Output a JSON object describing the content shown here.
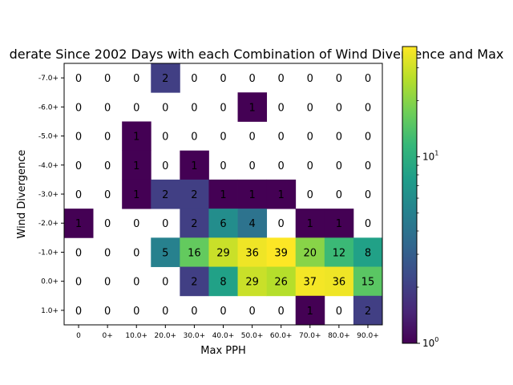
{
  "chart_data": {
    "type": "heatmap",
    "title": "derate Since 2002 Days with each Combination of Wind Divergence and Max",
    "xlabel": "Max PPH",
    "ylabel": "Wind Divergence",
    "x_categories": [
      "0",
      "0+",
      "10.0+",
      "20.0+",
      "30.0+",
      "40.0+",
      "50.0+",
      "60.0+",
      "70.0+",
      "80.0+",
      "90.0+"
    ],
    "y_categories": [
      "-7.0+",
      "-6.0+",
      "-5.0+",
      "-4.0+",
      "-3.0+",
      "-2.0+",
      "-1.0+",
      "0.0+",
      "1.0+"
    ],
    "values": [
      [
        0,
        0,
        0,
        2,
        0,
        0,
        0,
        0,
        0,
        0,
        0
      ],
      [
        0,
        0,
        0,
        0,
        0,
        0,
        1,
        0,
        0,
        0,
        0
      ],
      [
        0,
        0,
        1,
        0,
        0,
        0,
        0,
        0,
        0,
        0,
        0
      ],
      [
        0,
        0,
        1,
        0,
        1,
        0,
        0,
        0,
        0,
        0,
        0
      ],
      [
        0,
        0,
        1,
        2,
        2,
        1,
        1,
        1,
        0,
        0,
        0
      ],
      [
        1,
        0,
        0,
        0,
        2,
        6,
        4,
        0,
        1,
        1,
        0
      ],
      [
        0,
        0,
        0,
        5,
        16,
        29,
        36,
        39,
        20,
        12,
        8
      ],
      [
        0,
        0,
        0,
        0,
        2,
        8,
        29,
        26,
        37,
        36,
        15
      ],
      [
        0,
        0,
        0,
        0,
        0,
        0,
        0,
        0,
        1,
        0,
        2
      ]
    ],
    "colorbar": {
      "scale": "log",
      "range": [
        1,
        39
      ],
      "colormap": "viridis",
      "tick_labels": [
        "10^0",
        "10^1"
      ],
      "tick_values": [
        1,
        10
      ]
    },
    "zero_cells": "blank"
  }
}
